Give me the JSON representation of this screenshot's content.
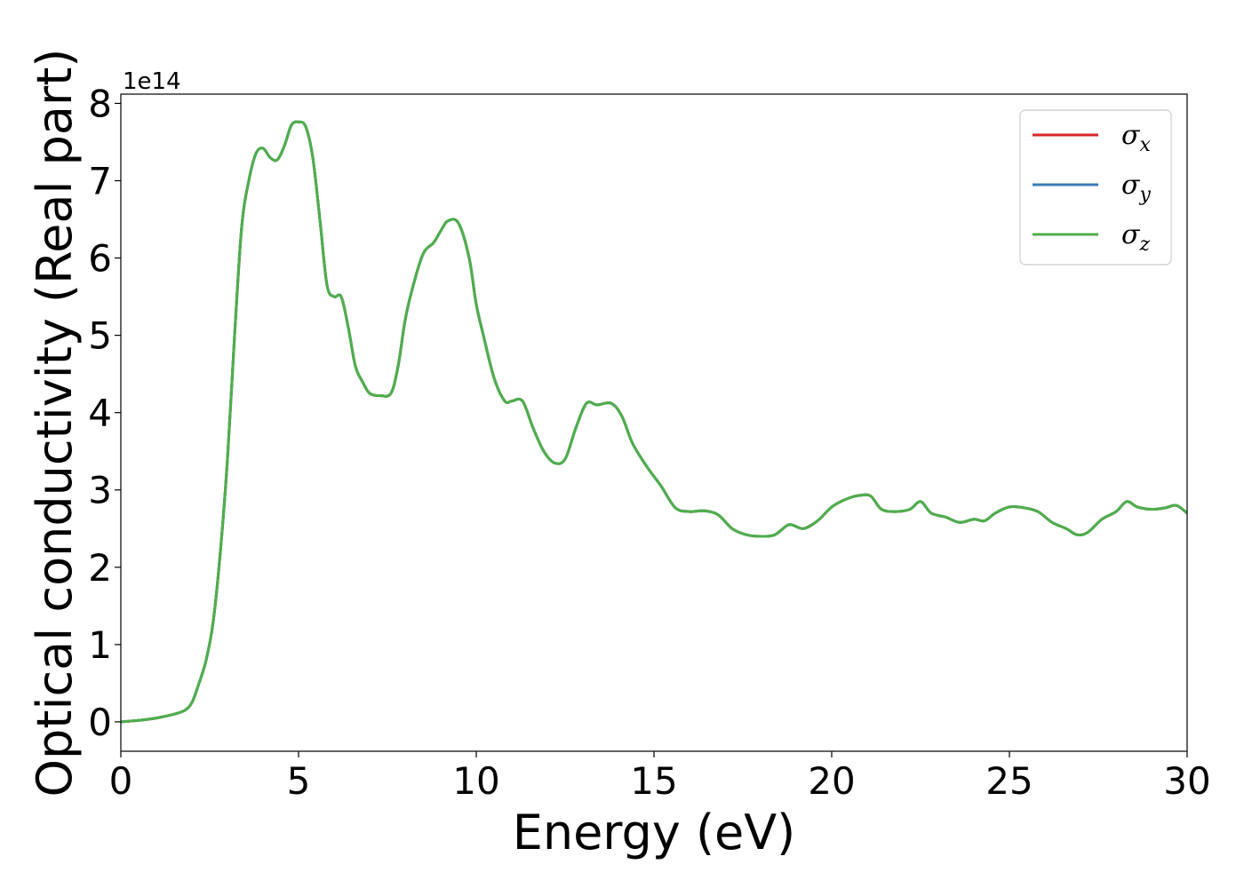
{
  "chart_data": {
    "type": "line",
    "title": "",
    "xlabel": "Energy (eV)",
    "ylabel": "Optical conductivity (Real part)",
    "y_offset_label": "1e14",
    "y_scale_factor": 100000000000000.0,
    "xlim": [
      0,
      30
    ],
    "ylim": [
      -0.38,
      8.12
    ],
    "xticks": [
      0,
      5,
      10,
      15,
      20,
      25,
      30
    ],
    "yticks": [
      0,
      1,
      2,
      3,
      4,
      5,
      6,
      7,
      8
    ],
    "grid": false,
    "legend_position": "top-right",
    "series": [
      {
        "name": "σ",
        "subscript": "x",
        "color": "#d62728",
        "x": [
          0,
          0.5,
          1,
          1.5,
          1.8,
          2,
          2.2,
          2.4,
          2.6,
          2.8,
          3,
          3.2,
          3.4,
          3.6,
          3.8,
          4,
          4.2,
          4.4,
          4.6,
          4.8,
          5,
          5.2,
          5.4,
          5.6,
          5.8,
          6,
          6.2,
          6.4,
          6.6,
          6.8,
          7,
          7.3,
          7.6,
          7.8,
          8,
          8.2,
          8.5,
          8.8,
          9,
          9.2,
          9.5,
          9.8,
          10,
          10.2,
          10.5,
          10.8,
          11,
          11.3,
          11.6,
          11.9,
          12.2,
          12.5,
          12.8,
          13.1,
          13.4,
          13.8,
          14.1,
          14.4,
          14.8,
          15.2,
          15.6,
          16,
          16.4,
          16.8,
          17.2,
          17.6,
          18,
          18.4,
          18.8,
          19.2,
          19.6,
          20,
          20.4,
          20.8,
          21.1,
          21.4,
          21.8,
          22.2,
          22.5,
          22.8,
          23.2,
          23.6,
          24,
          24.3,
          24.6,
          25,
          25.4,
          25.8,
          26.2,
          26.6,
          26.9,
          27.2,
          27.6,
          28,
          28.3,
          28.6,
          29,
          29.4,
          29.7,
          30
        ],
        "y": [
          0.0,
          0.02,
          0.05,
          0.1,
          0.15,
          0.25,
          0.5,
          0.8,
          1.3,
          2.2,
          3.4,
          5.0,
          6.4,
          7.0,
          7.35,
          7.42,
          7.3,
          7.27,
          7.45,
          7.72,
          7.76,
          7.7,
          7.3,
          6.5,
          5.65,
          5.5,
          5.5,
          5.1,
          4.6,
          4.4,
          4.25,
          4.22,
          4.25,
          4.6,
          5.2,
          5.6,
          6.05,
          6.2,
          6.35,
          6.48,
          6.45,
          6.0,
          5.4,
          5.0,
          4.45,
          4.15,
          4.15,
          4.15,
          3.8,
          3.5,
          3.35,
          3.4,
          3.8,
          4.12,
          4.1,
          4.12,
          3.95,
          3.6,
          3.3,
          3.05,
          2.77,
          2.72,
          2.73,
          2.68,
          2.5,
          2.42,
          2.4,
          2.42,
          2.55,
          2.5,
          2.6,
          2.78,
          2.88,
          2.93,
          2.92,
          2.75,
          2.72,
          2.75,
          2.85,
          2.7,
          2.65,
          2.58,
          2.62,
          2.6,
          2.7,
          2.78,
          2.77,
          2.72,
          2.58,
          2.5,
          2.42,
          2.45,
          2.62,
          2.72,
          2.85,
          2.78,
          2.75,
          2.77,
          2.8,
          2.7
        ]
      },
      {
        "name": "σ",
        "subscript": "y",
        "color": "#377eb8",
        "same_as": 0
      },
      {
        "name": "σ",
        "subscript": "z",
        "color": "#4daf4a",
        "same_as": 0
      }
    ]
  }
}
